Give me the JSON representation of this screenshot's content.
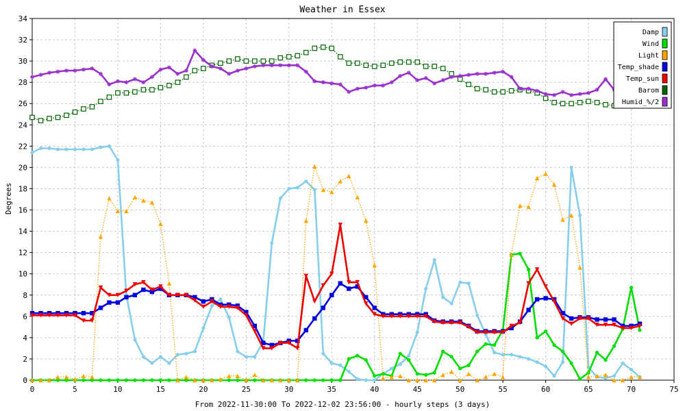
{
  "chart_data": {
    "type": "line",
    "title": "Weather in Essex",
    "xlabel": "From 2022-11-30:00 To 2022-12-02 23:56:00 - hourly steps (3 days)",
    "ylabel": "Degrees",
    "xlim": [
      0,
      75
    ],
    "ylim": [
      0,
      34
    ],
    "xticks": [
      "0",
      "5",
      "10",
      "15",
      "20",
      "25",
      "30",
      "35",
      "40",
      "45",
      "50",
      "55",
      "60",
      "65",
      "70",
      "75"
    ],
    "yticks": [
      "0",
      "2",
      "4",
      "6",
      "8",
      "10",
      "12",
      "14",
      "16",
      "18",
      "20",
      "22",
      "24",
      "26",
      "28",
      "30",
      "32",
      "34"
    ],
    "grid": true,
    "legend_position": "top-right",
    "series": [
      {
        "name": "Damp",
        "color": "#87ceeb",
        "style": "solid",
        "marker": "circle",
        "values": [
          21.4,
          21.8,
          21.8,
          21.7,
          21.7,
          21.7,
          21.7,
          21.7,
          21.9,
          22.0,
          20.7,
          8.0,
          3.8,
          2.2,
          1.6,
          2.2,
          1.6,
          2.4,
          2.5,
          2.7,
          4.9,
          7.0,
          7.6,
          5.9,
          2.7,
          2.2,
          2.2,
          3.6,
          12.9,
          17.1,
          18.0,
          18.1,
          18.7,
          17.9,
          2.5,
          1.6,
          1.4,
          0.8,
          0.1,
          0.0,
          0.0,
          0.6,
          1.1,
          1.5,
          2.3,
          4.5,
          8.6,
          11.3,
          7.8,
          7.2,
          9.2,
          9.1,
          6.1,
          4.3,
          2.6,
          2.4,
          2.4,
          2.2,
          2.0,
          1.7,
          1.3,
          0.4,
          1.7,
          20.0,
          15.5,
          1.2,
          0.3,
          0.2,
          0.4,
          1.6,
          1.0,
          0.3
        ]
      },
      {
        "name": "Wind",
        "color": "#00dd00",
        "style": "solid",
        "marker": "circle",
        "values": [
          0,
          0,
          0,
          0,
          0,
          0,
          0,
          0,
          0,
          0,
          0,
          0,
          0,
          0,
          0,
          0,
          0,
          0,
          0,
          0,
          0,
          0,
          0,
          0,
          0,
          0,
          0,
          0,
          0,
          0,
          0,
          0,
          0,
          0,
          0,
          0,
          0,
          2.0,
          2.3,
          1.9,
          0.4,
          0.6,
          0.4,
          2.5,
          1.9,
          0.6,
          0.5,
          0.7,
          2.7,
          2.2,
          1.1,
          1.4,
          2.7,
          3.4,
          3.3,
          4.7,
          11.8,
          11.9,
          10.4,
          4.0,
          4.6,
          3.3,
          2.7,
          1.6,
          0.1,
          0.7,
          2.6,
          1.9,
          3.2,
          4.8,
          8.7,
          4.7
        ]
      },
      {
        "name": "Light",
        "color": "#ffa500",
        "style": "dotted",
        "marker": "triangle-up",
        "values": [
          0,
          0,
          0,
          0.3,
          0.3,
          0.1,
          0.4,
          0.3,
          13.5,
          17.1,
          15.9,
          15.9,
          17.2,
          16.9,
          16.7,
          14.7,
          9.1,
          0,
          0.3,
          0,
          0,
          0,
          0.1,
          0.4,
          0.4,
          0,
          0.5,
          0,
          0,
          0,
          0,
          0,
          15.0,
          20.1,
          17.9,
          17.7,
          18.7,
          19.2,
          17.2,
          15.0,
          10.8,
          0.2,
          0.3,
          0.4,
          0,
          0,
          0,
          0,
          0.5,
          0.8,
          0,
          0.6,
          0,
          0.3,
          0.6,
          0.3,
          11.8,
          16.4,
          16.3,
          19.0,
          19.4,
          18.4,
          15.1,
          15.5,
          10.6,
          0.3,
          0.4,
          0.5,
          0,
          0,
          0.3,
          0.3
        ]
      },
      {
        "name": "Temp_shade",
        "color": "#0000dd",
        "style": "solid",
        "marker": "square",
        "values": [
          6.3,
          6.3,
          6.3,
          6.3,
          6.3,
          6.3,
          6.3,
          6.3,
          6.8,
          7.3,
          7.3,
          7.8,
          8.0,
          8.5,
          8.3,
          8.6,
          8.0,
          8.0,
          8.0,
          7.8,
          7.4,
          7.6,
          7.1,
          7.1,
          7.0,
          6.4,
          5.1,
          3.5,
          3.3,
          3.5,
          3.7,
          3.7,
          4.7,
          5.8,
          6.8,
          8.0,
          9.1,
          8.6,
          8.8,
          7.8,
          6.8,
          6.2,
          6.2,
          6.2,
          6.2,
          6.2,
          6.2,
          5.6,
          5.5,
          5.5,
          5.5,
          5.1,
          4.6,
          4.6,
          4.6,
          4.6,
          4.9,
          5.5,
          6.6,
          7.6,
          7.7,
          7.6,
          6.3,
          5.8,
          5.9,
          5.9,
          5.7,
          5.7,
          5.7,
          5.1,
          5.1,
          5.3
        ]
      },
      {
        "name": "Temp_sun",
        "color": "#ee0000",
        "style": "solid",
        "marker": "triangle-down",
        "values": [
          6.1,
          6.1,
          6.1,
          6.1,
          6.1,
          6.1,
          5.6,
          5.6,
          8.7,
          8.0,
          8.0,
          8.4,
          9.0,
          9.2,
          8.5,
          8.8,
          8.0,
          8.0,
          8.0,
          7.5,
          6.9,
          7.4,
          6.9,
          6.9,
          6.8,
          6.1,
          4.6,
          3.0,
          3.0,
          3.5,
          3.5,
          3.0,
          9.8,
          7.4,
          8.9,
          10.0,
          14.6,
          9.2,
          9.2,
          7.2,
          6.2,
          6.0,
          6.0,
          6.0,
          6.0,
          6.0,
          6.0,
          5.5,
          5.4,
          5.4,
          5.4,
          5.0,
          4.5,
          4.5,
          4.5,
          4.5,
          5.1,
          5.4,
          9.1,
          10.4,
          8.8,
          7.4,
          5.8,
          5.3,
          5.8,
          5.8,
          5.2,
          5.2,
          5.2,
          4.9,
          4.9,
          5.1
        ]
      },
      {
        "name": "Barom",
        "color": "#006400",
        "style": "dotted",
        "marker": "square-open",
        "values": [
          24.7,
          24.4,
          24.6,
          24.7,
          24.9,
          25.2,
          25.5,
          25.7,
          26.2,
          26.6,
          27.0,
          27.0,
          27.1,
          27.3,
          27.3,
          27.5,
          27.7,
          28.0,
          28.5,
          29.1,
          29.3,
          29.6,
          29.8,
          30.0,
          30.2,
          30.0,
          30.0,
          30.0,
          30.0,
          30.3,
          30.4,
          30.5,
          30.8,
          31.2,
          31.3,
          31.2,
          30.4,
          29.8,
          29.8,
          29.6,
          29.5,
          29.6,
          29.8,
          29.9,
          29.9,
          29.9,
          29.5,
          29.5,
          29.3,
          28.8,
          28.3,
          27.8,
          27.4,
          27.3,
          27.1,
          27.1,
          27.2,
          27.3,
          27.2,
          27.0,
          26.5,
          26.1,
          26.0,
          26.0,
          26.1,
          26.2,
          26.1,
          25.9,
          25.8
        ]
      },
      {
        "name": "Humid_%/2",
        "color": "#9932cc",
        "style": "solid",
        "marker": "star",
        "values": [
          28.5,
          28.7,
          28.9,
          29.0,
          29.1,
          29.1,
          29.2,
          29.3,
          28.8,
          27.8,
          28.1,
          28.0,
          28.3,
          28.0,
          28.5,
          29.2,
          29.4,
          28.8,
          29.1,
          31.0,
          30.1,
          29.5,
          29.3,
          28.8,
          29.1,
          29.3,
          29.5,
          29.6,
          29.6,
          29.6,
          29.6,
          29.6,
          29.0,
          28.1,
          28.0,
          27.9,
          27.8,
          27.1,
          27.4,
          27.5,
          27.7,
          27.7,
          28.0,
          28.6,
          28.9,
          28.2,
          28.4,
          27.9,
          28.2,
          28.5,
          28.6,
          28.7,
          28.8,
          28.8,
          28.9,
          29.0,
          28.5,
          27.4,
          27.4,
          27.2,
          26.9,
          26.8,
          27.1,
          26.8,
          26.9,
          27.0,
          27.3,
          28.3,
          27.3
        ]
      }
    ]
  }
}
